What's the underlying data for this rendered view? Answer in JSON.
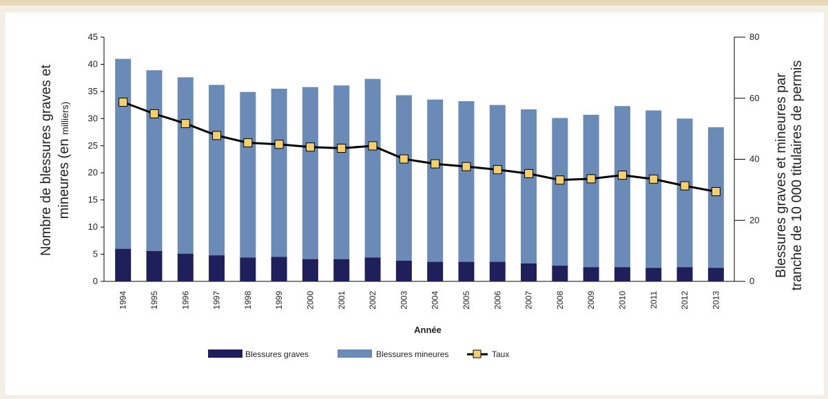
{
  "chart_data": {
    "type": "bar",
    "stacked": true,
    "categories": [
      "1994",
      "1995",
      "1996",
      "1997",
      "1998",
      "1999",
      "2000",
      "2001",
      "2002",
      "2003",
      "2004",
      "2005",
      "2006",
      "2007",
      "2008",
      "2009",
      "2010",
      "2011",
      "2012",
      "2013"
    ],
    "series": [
      {
        "name": "Blessures graves",
        "type": "bar",
        "axis": "left",
        "color": "#1f1f5c",
        "values": [
          6.0,
          5.6,
          5.1,
          4.8,
          4.4,
          4.5,
          4.1,
          4.1,
          4.4,
          3.8,
          3.6,
          3.6,
          3.6,
          3.3,
          2.9,
          2.6,
          2.6,
          2.5,
          2.6,
          2.5
        ]
      },
      {
        "name": "Blessures mineures",
        "type": "bar",
        "axis": "left",
        "color": "#6a8bb8",
        "values": [
          35.0,
          33.3,
          32.5,
          31.4,
          30.5,
          31.0,
          31.7,
          32.0,
          32.9,
          30.5,
          29.9,
          29.6,
          28.9,
          28.4,
          27.2,
          28.1,
          29.7,
          29.0,
          27.4,
          25.9
        ]
      },
      {
        "name": "Taux",
        "type": "line",
        "axis": "right",
        "color": "#000000",
        "marker_color": "#f4cf6a",
        "values": [
          58.7,
          54.9,
          51.7,
          47.8,
          45.4,
          44.9,
          44.0,
          43.6,
          44.4,
          40.1,
          38.5,
          37.6,
          36.6,
          35.3,
          33.2,
          33.6,
          34.8,
          33.5,
          31.3,
          29.4
        ]
      }
    ],
    "ylabel_left_line1": "Nombre de blessures graves et",
    "ylabel_left_line2_main": "mineures (en ",
    "ylabel_left_line2_small": "milliers)",
    "ylabel_right_line1": "Blessures graves et mineures par",
    "ylabel_right_line2": "tranche de 10 000 titulaires de permis",
    "xlabel": "Année",
    "ylim_left": [
      0,
      45
    ],
    "yticks_left": [
      0,
      5,
      10,
      15,
      20,
      25,
      30,
      35,
      40,
      45
    ],
    "ylim_right": [
      0,
      80
    ],
    "yticks_right": [
      0,
      20,
      40,
      60,
      80
    ],
    "legend": [
      "Blessures graves",
      "Blessures mineures",
      "Taux"
    ],
    "legend_position": "bottom"
  }
}
